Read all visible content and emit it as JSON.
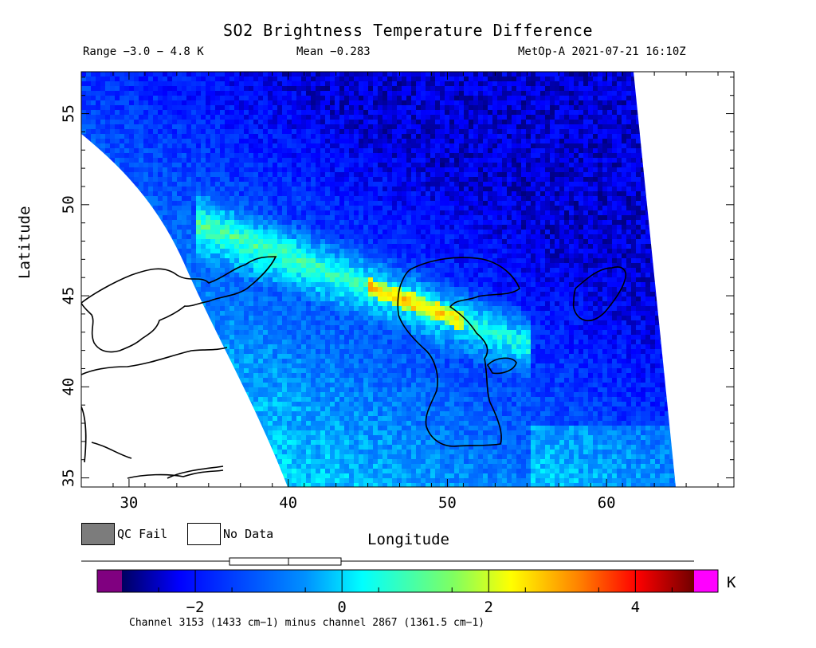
{
  "header": {
    "title": "SO2 Brightness Temperature Difference",
    "range": "Range −3.0 − 4.8 K",
    "mean": "Mean −0.283",
    "satellite_time": "MetOp-A 2021-07-21 16:10Z"
  },
  "axes": {
    "xlabel": "Longitude",
    "ylabel": "Latitude",
    "x_ticks": [
      "30",
      "40",
      "50",
      "60"
    ],
    "y_ticks": [
      "35",
      "40",
      "45",
      "50",
      "55"
    ],
    "lon_range": [
      27,
      68
    ],
    "lat_range": [
      34.5,
      57.3
    ]
  },
  "legend": {
    "qc_fail_label": "QC Fail",
    "no_data_label": "No Data",
    "qc_fail_color": "#7c7c7c",
    "no_data_color": "#ffffff"
  },
  "colorbar": {
    "ticks": [
      "−2",
      "0",
      "2",
      "4"
    ],
    "unit": "K",
    "caption": "Channel 3153 (1433 cm−1) minus channel 2867 (1361.5 cm−1)",
    "range": [
      -3.0,
      4.8
    ],
    "under_color": "#800080",
    "over_color": "#ff00ff"
  },
  "chart_data": {
    "type": "heatmap",
    "title": "SO2 Brightness Temperature Difference",
    "xlabel": "Longitude",
    "ylabel": "Latitude",
    "xlim": [
      27,
      68
    ],
    "ylim": [
      34.5,
      57.3
    ],
    "color_range": [
      -3.0,
      4.8
    ],
    "mean": -0.283,
    "unit": "K",
    "plume_peak": {
      "lon": 47.5,
      "lat": 44.8,
      "value": 4.0
    }
  }
}
